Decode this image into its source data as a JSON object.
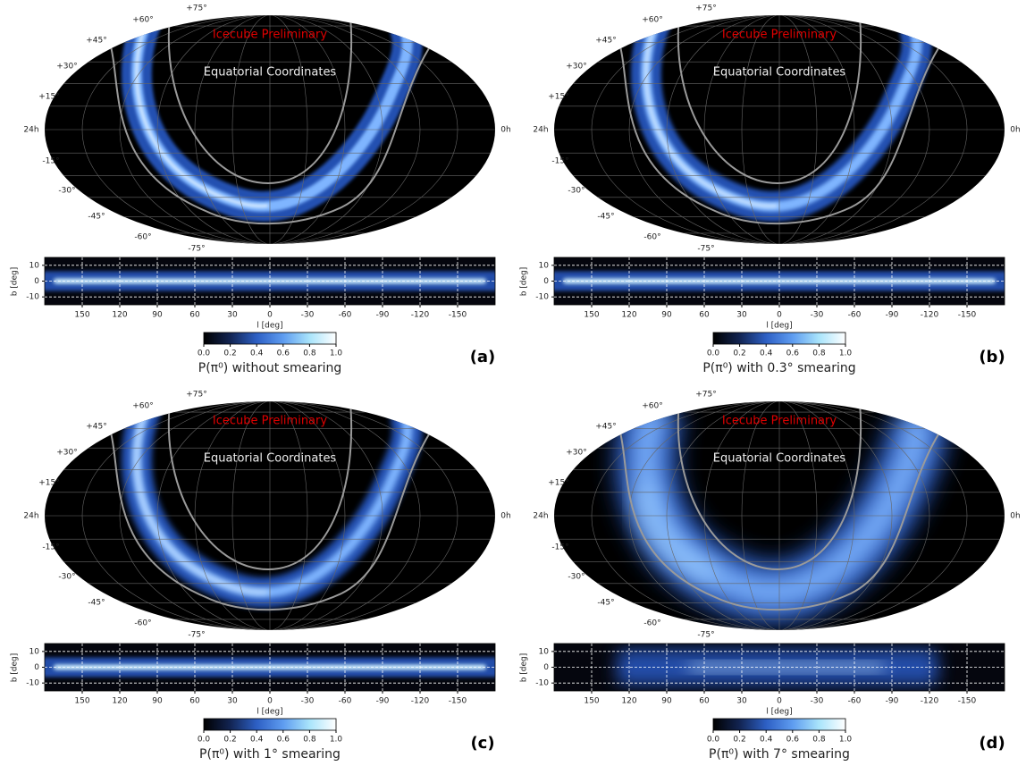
{
  "map": {
    "annotation": "Icecube Preliminary",
    "frame": "Equatorial Coordinates",
    "ra_left": "24h",
    "ra_right": "0h",
    "dec_labels": [
      "+75°",
      "+60°",
      "+45°",
      "+30°",
      "+15°",
      "-15°",
      "-30°",
      "-45°",
      "-60°",
      "-75°"
    ]
  },
  "strip": {
    "ylabel": "b [deg]",
    "xlabel": "l [deg]",
    "xlim": [
      180,
      -180
    ],
    "ylim": [
      -15,
      15
    ],
    "xticks": [
      150,
      120,
      90,
      60,
      30,
      0,
      -30,
      -60,
      -90,
      -120,
      -150
    ],
    "yticks": [
      10,
      0,
      -10
    ]
  },
  "colorbar": {
    "lim": [
      0,
      1
    ],
    "ticks": [
      {
        "value": 0,
        "label": "0.0"
      },
      0.2,
      0.4,
      0.6,
      0.8,
      {
        "value": 1,
        "label": "1.0"
      }
    ]
  },
  "panels": [
    {
      "label": "(a)",
      "caption": "P(π⁰) without smearing"
    },
    {
      "label": "(b)",
      "caption": "P(π⁰) with 0.3° smearing"
    },
    {
      "label": "(c)",
      "caption": "P(π⁰) with 1° smearing"
    },
    {
      "label": "(d)",
      "caption": "P(π⁰) with 7° smearing"
    }
  ]
}
